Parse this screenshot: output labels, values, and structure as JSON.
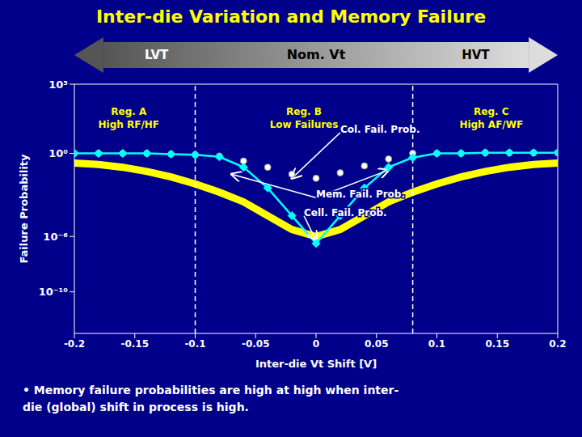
{
  "chart_data": {
    "type": "line",
    "title": "Inter-die Variation and Memory Failure",
    "title_color": "#FFFF00",
    "x_label": "Inter-die Vt Shift [V]",
    "y_label": "Failure Probability",
    "x": [
      -0.2,
      -0.18,
      -0.16,
      -0.14,
      -0.12,
      -0.1,
      -0.08,
      -0.06,
      -0.04,
      -0.02,
      0.0,
      0.02,
      0.04,
      0.06,
      0.08,
      0.1,
      0.12,
      0.14,
      0.16,
      0.18,
      0.2
    ],
    "series": [
      {
        "type": "line",
        "color": "#FFFF00",
        "marker": "none",
        "line_style": "solid",
        "values": [
          0.1995262315,
          0.1584893192,
          0.1,
          0.05011872336,
          0.01995262315,
          0.006309573445,
          0.001584893192,
          0.000316227766,
          3.16227766e-05,
          3.16227766e-06,
          1e-06,
          3.16227766e-06,
          3.16227766e-05,
          0.000316227766,
          0.001584893192,
          0.006309573445,
          0.01995262315,
          0.05011872336,
          0.1,
          0.1584893192,
          0.1995262315
        ]
      },
      {
        "type": "scatter",
        "color": "#FFFFFF",
        "marker": "circle",
        "line_style": "none",
        "values": [
          1,
          1,
          1,
          1,
          0.8912509381,
          0.7943282347,
          0.6309573445,
          0.2818382931,
          0.1,
          0.0316227766,
          0.01584893192,
          0.03981071706,
          0.1258925412,
          0.3981071706,
          1,
          1,
          1,
          1.122018454,
          1.122018454,
          1.122018454,
          1.122018454
        ]
      },
      {
        "type": "line",
        "color": "#00FFFF",
        "marker": "diamond",
        "line_style": "solid",
        "values": [
          1,
          1,
          1,
          1,
          0.8912509381,
          0.7943282347,
          0.5623413252,
          0.1,
          0.00316227766,
          3.16227766e-05,
          3.16227766e-07,
          3.16227766e-05,
          0.00316227766,
          0.1,
          0.5011872336,
          1,
          1,
          1.122018454,
          1.122018454,
          1.122018454,
          1.122018454
        ]
      }
    ],
    "xlim": [
      -0.2,
      0.2
    ],
    "xticks": [
      -0.2,
      -0.15,
      -0.1,
      -0.05,
      0,
      0.05,
      0.1,
      0.15,
      0.2
    ],
    "ylim": [
      1e-13,
      100000
    ],
    "yticks": [
      {
        "value": 100000,
        "label": "10⁵"
      },
      {
        "value": 1,
        "label": "10⁰"
      },
      {
        "value": 1e-06,
        "label": "10⁻⁶"
      },
      {
        "value": 1e-10,
        "label": "10⁻¹⁰"
      }
    ],
    "log": "y",
    "grid": false,
    "vlines": [
      -0.1,
      0.08
    ],
    "annotations": [
      {
        "text": "Reg. A\nHigh RF/HF",
        "x": -0.155,
        "y": 3162.27766,
        "color": "#FFFF00",
        "arrows": []
      },
      {
        "text": "Reg. B\nLow Failures",
        "x": -0.01,
        "y": 3162.27766,
        "color": "#FFFF00",
        "arrows": []
      },
      {
        "text": "Reg. C\nHigh AF/WF",
        "x": 0.145,
        "y": 3162.27766,
        "color": "#FFFF00",
        "arrows": []
      },
      {
        "text": "Col. Fail. Prob.",
        "x": 0.02,
        "y": 31.6227766,
        "color": "#FFFFFF",
        "arrows": [
          {
            "x": -0.02,
            "y": 0.01584893192
          }
        ]
      },
      {
        "text": "Cell. Fail. Prob.",
        "x": -0.01,
        "y": 3.16227766e-05,
        "color": "#FFFFFF",
        "arrows": [
          {
            "x": 0,
            "y": 5.011872336e-07
          }
        ]
      },
      {
        "text": "Mem. Fail. Prob.",
        "x": 0,
        "y": 0.000630957344,
        "color": "#FFFFFF",
        "arrows": [
          {
            "x": -0.07,
            "y": 0.0316227766
          },
          {
            "x": 0.06,
            "y": 0.0630957344
          }
        ]
      }
    ],
    "threshold_bar": [
      "LVT",
      "Nom. Vt",
      "HVT"
    ],
    "note": "• Memory failure probabilities are high at high when inter-\ndie (global) shift in process is high."
  }
}
